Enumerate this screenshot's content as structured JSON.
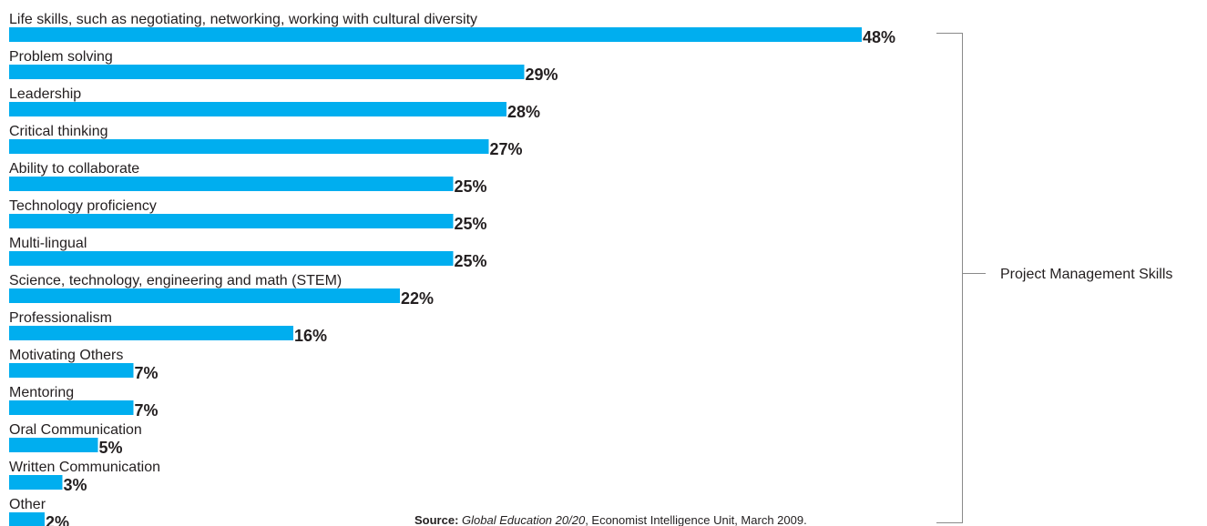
{
  "chart_data": {
    "type": "bar",
    "orientation": "horizontal",
    "categories": [
      "Life skills, such as negotiating, networking, working with cultural diversity",
      "Problem solving",
      "Leadership",
      "Critical thinking",
      "Ability to collaborate",
      "Technology proficiency",
      "Multi-lingual",
      "Science, technology, engineering and math (STEM)",
      "Professionalism",
      "Motivating Others",
      "Mentoring",
      "Oral Communication",
      "Written Communication",
      "Other"
    ],
    "values": [
      48,
      29,
      28,
      27,
      25,
      25,
      25,
      22,
      16,
      7,
      7,
      5,
      3,
      2
    ],
    "value_labels": [
      "48%",
      "29%",
      "28%",
      "27%",
      "25%",
      "25%",
      "25%",
      "22%",
      "16%",
      "7%",
      "7%",
      "5%",
      "3%",
      "2%"
    ],
    "bar_color": "#00aeef",
    "bracket_label": "Project Management Skills",
    "source": {
      "prefix": "Source:",
      "title": "Global Education 20/20",
      "rest": ", Economist Intelligence Unit, March 2009."
    }
  }
}
